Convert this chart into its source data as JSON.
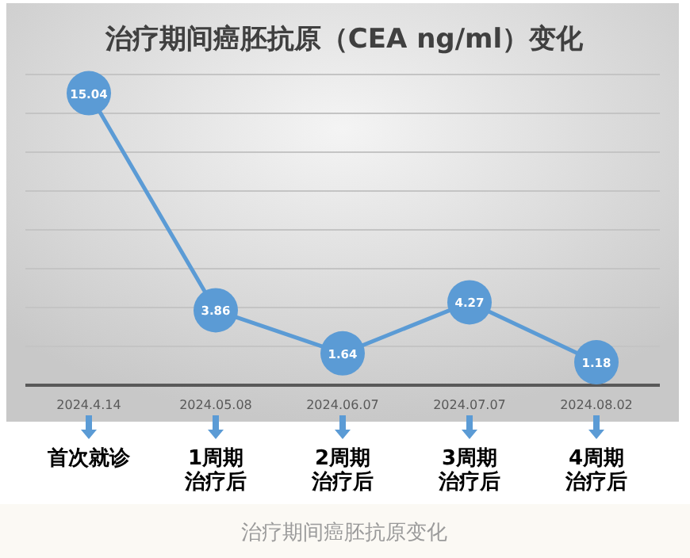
{
  "chart_data": {
    "type": "line",
    "title": "治疗期间癌胚抗原（CEA ng/ml）变化",
    "categories": [
      "2024.4.14",
      "2024.05.08",
      "2024.06.07",
      "2024.07.07",
      "2024.08.02"
    ],
    "series": [
      {
        "color": "#5b9bd5",
        "values": [
          15.04,
          3.86,
          1.64,
          4.27,
          1.18
        ]
      }
    ],
    "ylim": [
      0,
      16
    ],
    "yticks": [
      {
        "value": 0,
        "label": null
      },
      {
        "value": 2,
        "label": null
      },
      {
        "value": 4,
        "label": null
      },
      {
        "value": 6,
        "label": null
      },
      {
        "value": 8,
        "label": null
      },
      {
        "value": 10,
        "label": null
      },
      {
        "value": 12,
        "label": null
      },
      {
        "value": 14,
        "label": null
      },
      {
        "value": 16,
        "label": null
      }
    ],
    "grid": "y",
    "tick_labels": "x",
    "marker": "circle",
    "data_labels": true,
    "annotations": [
      "首次就诊",
      "1周期治疗后",
      "2周期治疗后",
      "3周期治疗后",
      "4周期治疗后",
      "治疗期间癌胚抗原变化"
    ]
  }
}
